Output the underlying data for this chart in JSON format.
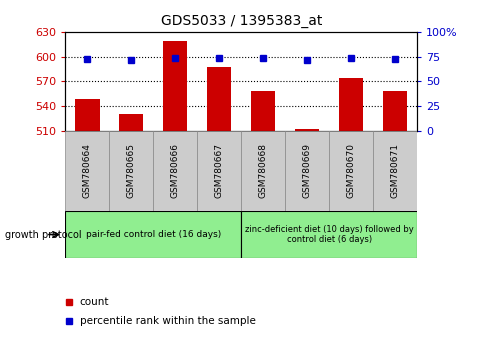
{
  "title": "GDS5033 / 1395383_at",
  "samples": [
    "GSM780664",
    "GSM780665",
    "GSM780666",
    "GSM780667",
    "GSM780668",
    "GSM780669",
    "GSM780670",
    "GSM780671"
  ],
  "count_values": [
    549,
    531,
    619,
    588,
    558,
    512,
    574,
    558
  ],
  "percentile_values": [
    73,
    72,
    74,
    74,
    74,
    72,
    74,
    73
  ],
  "ylim_left": [
    510,
    630
  ],
  "ylim_right": [
    0,
    100
  ],
  "yticks_left": [
    510,
    540,
    570,
    600,
    630
  ],
  "yticks_right": [
    0,
    25,
    50,
    75,
    100
  ],
  "grid_values": [
    540,
    570,
    600
  ],
  "bar_color": "#cc0000",
  "dot_color": "#0000cc",
  "group1_label": "pair-fed control diet (16 days)",
  "group2_label": "zinc-deficient diet (10 days) followed by\ncontrol diet (6 days)",
  "group1_indices": [
    0,
    1,
    2,
    3
  ],
  "group2_indices": [
    4,
    5,
    6,
    7
  ],
  "group1_bg": "#90ee90",
  "group2_bg": "#90ee90",
  "tick_bg": "#cccccc",
  "growth_protocol_label": "growth protocol",
  "legend_count_label": "count",
  "legend_percentile_label": "percentile rank within the sample",
  "title_fontsize": 10,
  "tick_fontsize": 8,
  "label_fontsize": 7
}
